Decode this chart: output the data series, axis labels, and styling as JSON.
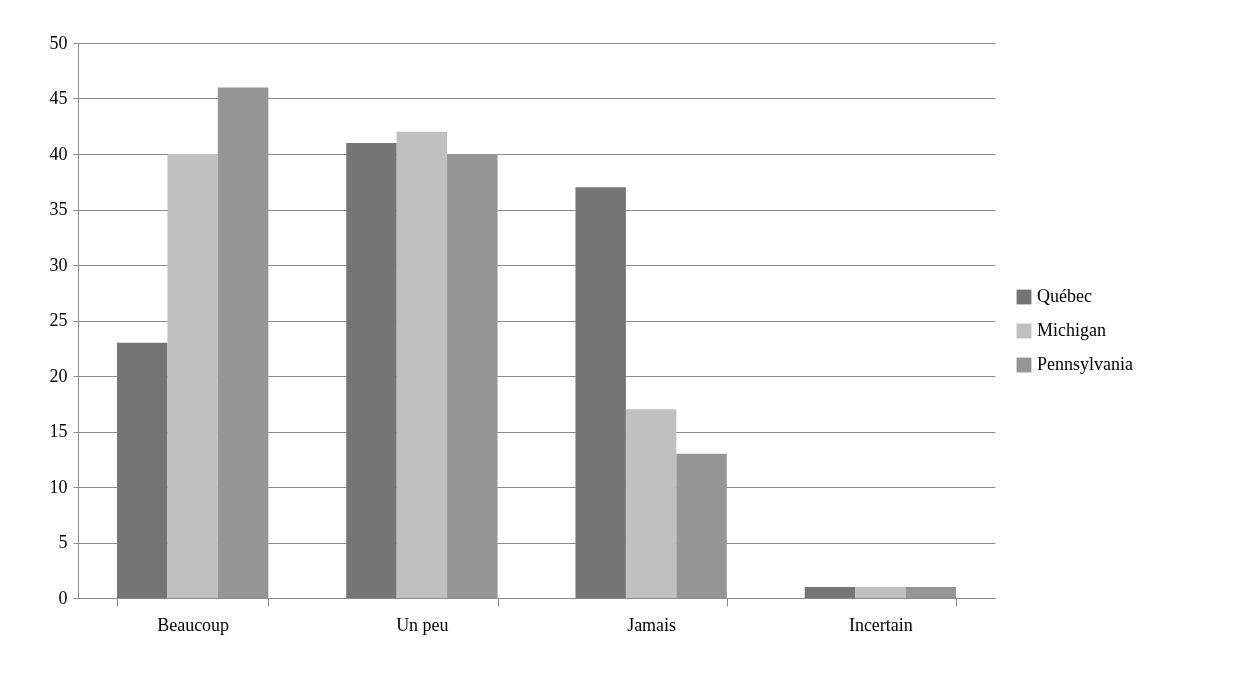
{
  "chart_data": {
    "type": "bar",
    "categories": [
      "Beaucoup",
      "Un peu",
      "Jamais",
      "Incertain"
    ],
    "series": [
      {
        "name": "Québec",
        "color": "#757575",
        "values": [
          23,
          41,
          37,
          1
        ]
      },
      {
        "name": "Michigan",
        "color": "#c0c0c0",
        "values": [
          40,
          42,
          17,
          1
        ]
      },
      {
        "name": "Pennsylvania",
        "color": "#959595",
        "values": [
          46,
          40,
          13,
          1
        ]
      }
    ],
    "ylim": [
      0,
      50
    ],
    "yticks": [
      0,
      5,
      10,
      15,
      20,
      25,
      30,
      35,
      40,
      45,
      50
    ],
    "grid": "y",
    "legend": "right"
  }
}
